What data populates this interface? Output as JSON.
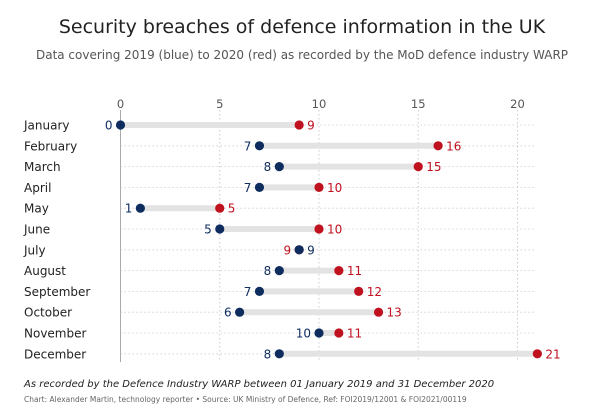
{
  "title": "Security breaches of defence information in the UK",
  "subtitle": "Data covering 2019 (blue) to 2020 (red) as recorded by the MoD defence industry WARP",
  "footnote": "As recorded by the Defence Industry WARP between 01 January 2019 and 31 December 2020",
  "source": "Chart: Alexander Martin, technology reporter • Source: UK Ministry of Defence, Ref: FOI2019/12001 & FOI2021/00119",
  "colors": {
    "blue": "#0e2c5e",
    "red": "#c0111f",
    "bar": "#e3e3e3",
    "grid": "#cccccc",
    "zero": "#aaaaaa"
  },
  "chart_data": {
    "type": "dumbbell",
    "title": "Security breaches of defence information in the UK",
    "subtitle": "Data covering 2019 (blue) to 2020 (red) as recorded by the MoD defence industry WARP",
    "xlabel": "",
    "ylabel": "",
    "xlim": [
      0,
      21
    ],
    "xticks": [
      0,
      5,
      10,
      15,
      20
    ],
    "grid": true,
    "categories": [
      "January",
      "February",
      "March",
      "April",
      "May",
      "June",
      "July",
      "August",
      "September",
      "October",
      "November",
      "December"
    ],
    "series": [
      {
        "name": "2019",
        "color": "blue",
        "values": [
          0,
          7,
          8,
          7,
          1,
          5,
          9,
          8,
          7,
          6,
          10,
          8
        ]
      },
      {
        "name": "2020",
        "color": "red",
        "values": [
          9,
          16,
          15,
          10,
          5,
          10,
          9,
          11,
          12,
          13,
          11,
          21
        ]
      }
    ]
  }
}
